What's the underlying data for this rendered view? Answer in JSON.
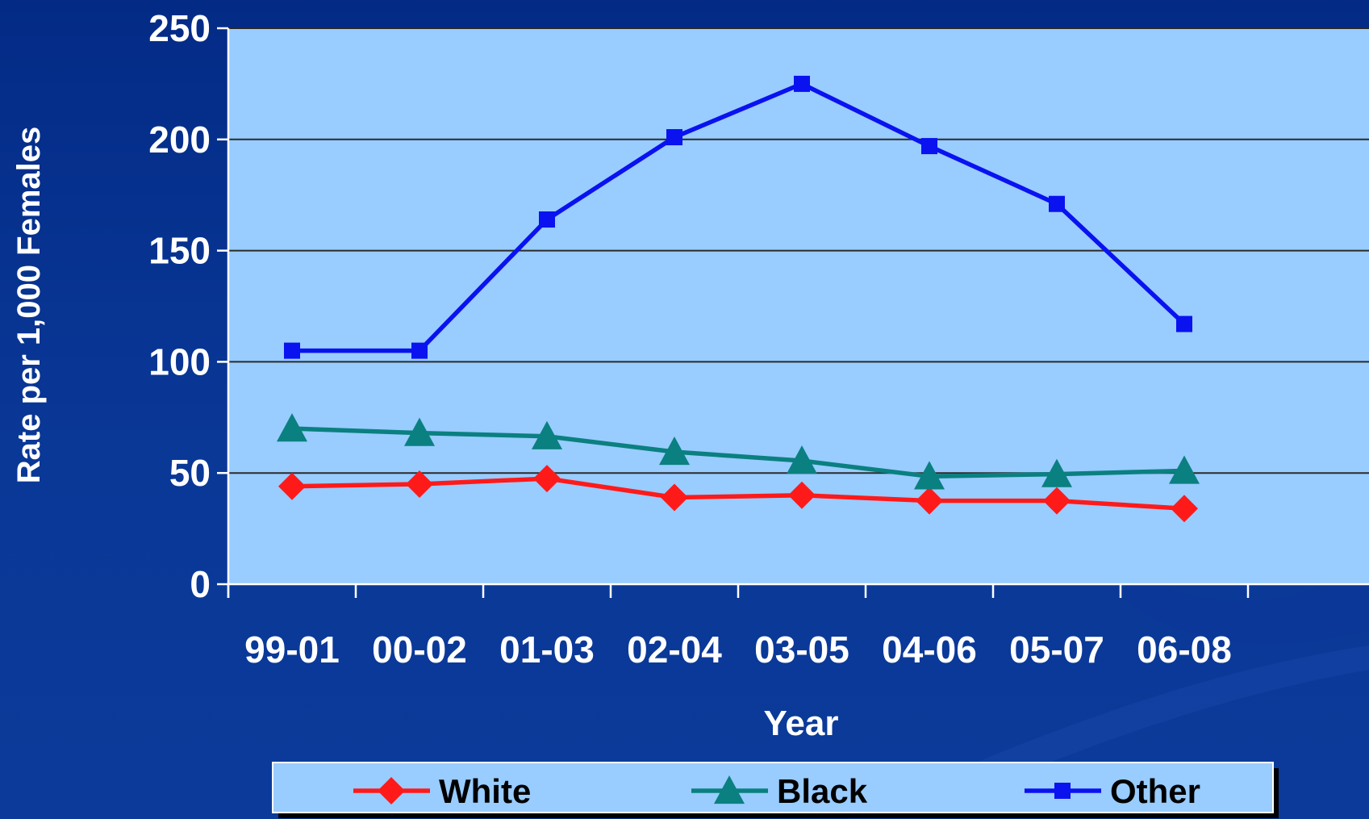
{
  "chart_data": {
    "type": "line",
    "title": "",
    "xlabel": "Year",
    "ylabel": "Rate per 1,000 Females",
    "categories": [
      "99-01",
      "00-02",
      "01-03",
      "02-04",
      "03-05",
      "04-06",
      "05-07",
      "06-08"
    ],
    "ylim": [
      0,
      250
    ],
    "yticks": [
      0,
      50,
      100,
      150,
      200,
      250
    ],
    "grid": true,
    "legend_position": "bottom",
    "series": [
      {
        "name": "White",
        "color": "#ff1a1a",
        "marker": "diamond",
        "values": [
          44,
          45,
          47.5,
          39,
          40,
          37.5,
          37.5,
          34
        ]
      },
      {
        "name": "Black",
        "color": "#0a8080",
        "marker": "triangle",
        "values": [
          70,
          68,
          66.5,
          59.5,
          55.5,
          48.5,
          49.5,
          51
        ]
      },
      {
        "name": "Other",
        "color": "#0a12f0",
        "marker": "square",
        "values": [
          105,
          105,
          164,
          201,
          225,
          197,
          171,
          117
        ]
      }
    ],
    "colors": {
      "plot_background": "#99ccff",
      "page_background": "#0a3591",
      "gridline": "#2a2a2a",
      "axis_text": "#ffffff"
    }
  }
}
